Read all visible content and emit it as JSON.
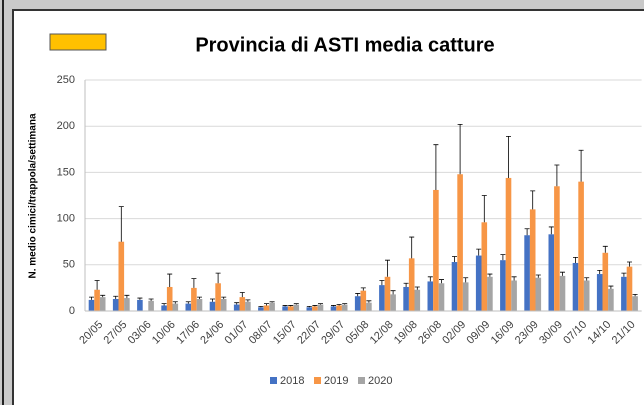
{
  "chart_data": {
    "type": "bar",
    "title": "Provincia di ASTI media catture",
    "y_label": "N. medio cimici/trappola/settimana",
    "categories": [
      "20/05",
      "27/05",
      "03/06",
      "10/06",
      "17/06",
      "24/06",
      "01/07",
      "08/07",
      "15/07",
      "22/07",
      "29/07",
      "05/08",
      "12/08",
      "19/08",
      "26/08",
      "02/09",
      "09/09",
      "16/09",
      "23/09",
      "30/09",
      "07/10",
      "14/10",
      "21/10"
    ],
    "series": [
      {
        "name": "2018",
        "color": "#4472c4",
        "values": [
          12,
          13,
          12,
          6,
          8,
          10,
          7,
          4,
          5,
          4,
          5,
          16,
          28,
          26,
          32,
          53,
          60,
          55,
          82,
          83,
          52,
          40,
          37
        ],
        "errors": [
          3,
          3,
          2,
          2,
          2,
          3,
          2,
          1,
          1,
          1,
          1,
          3,
          5,
          4,
          5,
          6,
          7,
          6,
          7,
          8,
          6,
          4,
          4
        ]
      },
      {
        "name": "2019",
        "color": "#f79646",
        "values": [
          23,
          75,
          null,
          26,
          25,
          30,
          15,
          6,
          5,
          5,
          6,
          22,
          37,
          57,
          131,
          148,
          96,
          144,
          110,
          135,
          140,
          63,
          48
        ],
        "errors": [
          10,
          38,
          null,
          14,
          10,
          11,
          5,
          2,
          1,
          1,
          1,
          3,
          18,
          23,
          49,
          54,
          29,
          45,
          20,
          23,
          34,
          7,
          5
        ]
      },
      {
        "name": "2020",
        "color": "#a5a5a5",
        "values": [
          15,
          14,
          11,
          8,
          13,
          13,
          10,
          9,
          7,
          7,
          7,
          9,
          18,
          23,
          30,
          31,
          37,
          33,
          36,
          38,
          33,
          24,
          16
        ],
        "errors": [
          2,
          3,
          2,
          2,
          2,
          2,
          2,
          1,
          1,
          1,
          1,
          2,
          4,
          3,
          4,
          5,
          3,
          4,
          3,
          4,
          3,
          3,
          2
        ]
      }
    ],
    "ylim": [
      0,
      250
    ],
    "yticks": [
      0,
      50,
      100,
      150,
      200,
      250
    ],
    "grid": true
  }
}
